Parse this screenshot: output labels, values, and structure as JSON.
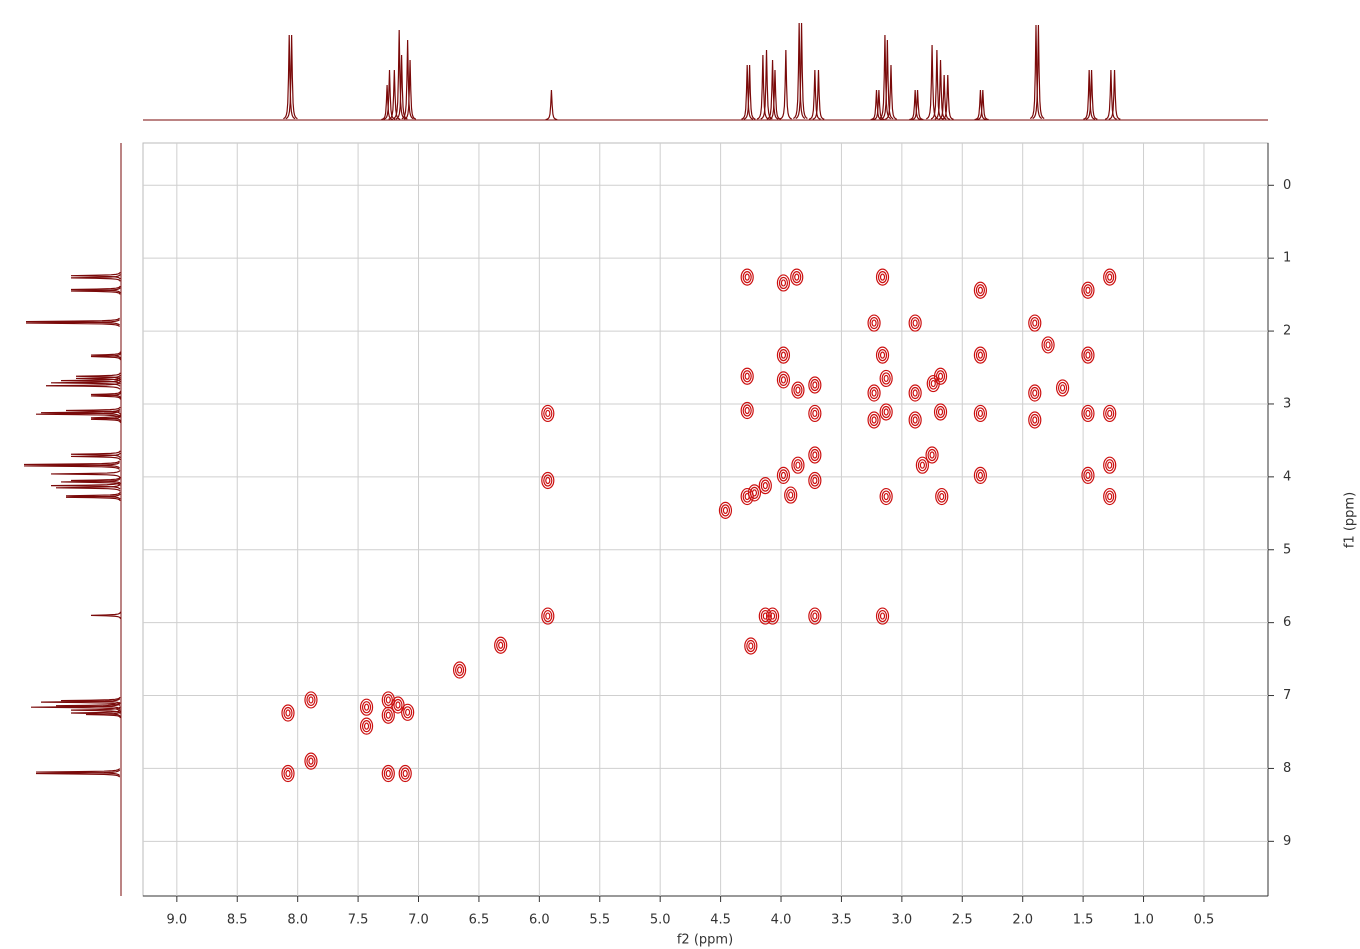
{
  "chart_data": {
    "type": "scatter",
    "x_label": "f2 (ppm)",
    "y_label": "f1 (ppm)",
    "xlim": [
      9.28,
      -0.03
    ],
    "ylim": [
      -0.58,
      9.75
    ],
    "xticks": [
      {
        "value": 9,
        "label": "9.0"
      },
      8.5,
      {
        "value": 8,
        "label": "8.0"
      },
      7.5,
      {
        "value": 7,
        "label": "7.0"
      },
      6.5,
      {
        "value": 6,
        "label": "6.0"
      },
      5.5,
      {
        "value": 5,
        "label": "5.0"
      },
      4.5,
      {
        "value": 4,
        "label": "4.0"
      },
      3.5,
      {
        "value": 3,
        "label": "3.0"
      },
      2.5,
      {
        "value": 2,
        "label": "2.0"
      },
      1.5,
      {
        "value": 1,
        "label": "1.0"
      },
      0.5
    ],
    "yticks": [
      0,
      1,
      2,
      3,
      4,
      5,
      6,
      7,
      8,
      9
    ],
    "grid": true,
    "color": "#cc1010",
    "x": [
      8.08,
      8.08,
      7.89,
      7.89,
      7.43,
      7.43,
      7.25,
      7.11,
      7.25,
      7.17,
      7.09,
      7.25,
      5.93,
      5.93,
      5.93,
      4.28,
      4.28,
      4.28,
      4.28,
      4.46,
      4.13,
      4.07,
      3.72,
      3.16,
      3.87,
      3.98,
      3.98,
      3.98,
      3.86,
      3.72,
      3.72,
      3.72,
      3.72,
      3.86,
      3.98,
      4.13,
      4.22,
      3.92,
      3.16,
      3.23,
      3.16,
      3.13,
      3.23,
      3.23,
      3.13,
      3.13,
      2.89,
      2.89,
      2.89,
      2.83,
      2.75,
      2.74,
      2.68,
      2.68,
      2.67,
      2.35,
      2.35,
      2.35,
      2.35,
      1.9,
      1.9,
      1.9,
      1.79,
      1.67,
      1.46,
      1.46,
      1.46,
      1.46,
      1.28,
      1.28,
      1.28,
      1.28,
      4.25,
      6.32,
      6.66
    ],
    "y": [
      7.24,
      8.07,
      7.06,
      7.9,
      7.16,
      7.42,
      8.07,
      8.07,
      7.06,
      7.13,
      7.23,
      7.27,
      3.13,
      4.05,
      5.91,
      1.26,
      2.62,
      3.09,
      4.27,
      4.46,
      5.91,
      5.91,
      5.91,
      5.91,
      1.26,
      1.34,
      2.33,
      2.67,
      2.81,
      2.74,
      3.13,
      3.7,
      4.05,
      3.84,
      3.98,
      4.12,
      4.22,
      4.25,
      1.26,
      1.89,
      2.33,
      2.65,
      2.85,
      3.22,
      3.11,
      4.27,
      1.89,
      2.85,
      3.22,
      3.84,
      3.7,
      2.72,
      2.62,
      3.11,
      4.27,
      1.44,
      2.33,
      3.13,
      3.98,
      1.89,
      2.85,
      3.22,
      2.19,
      2.78,
      1.44,
      2.33,
      3.13,
      3.98,
      1.26,
      3.13,
      3.84,
      4.27,
      6.32,
      6.31,
      6.65
    ],
    "projection": {
      "color": "#7a0a0a",
      "ppm": [
        8.07,
        8.05,
        7.26,
        7.24,
        7.2,
        7.16,
        7.14,
        7.09,
        7.07,
        5.9,
        4.28,
        4.26,
        4.15,
        4.12,
        4.07,
        4.05,
        3.96,
        3.85,
        3.83,
        3.72,
        3.69,
        3.21,
        3.19,
        3.14,
        3.12,
        3.09,
        2.89,
        2.87,
        2.75,
        2.71,
        2.68,
        2.65,
        2.62,
        2.35,
        2.33,
        1.89,
        1.87,
        1.45,
        1.43,
        1.27,
        1.24
      ],
      "intensity": [
        85,
        85,
        35,
        50,
        50,
        90,
        65,
        80,
        60,
        30,
        55,
        55,
        65,
        70,
        60,
        50,
        70,
        97,
        97,
        50,
        50,
        30,
        30,
        85,
        80,
        55,
        30,
        30,
        75,
        70,
        60,
        45,
        45,
        30,
        30,
        95,
        95,
        50,
        50,
        50,
        50
      ]
    }
  }
}
